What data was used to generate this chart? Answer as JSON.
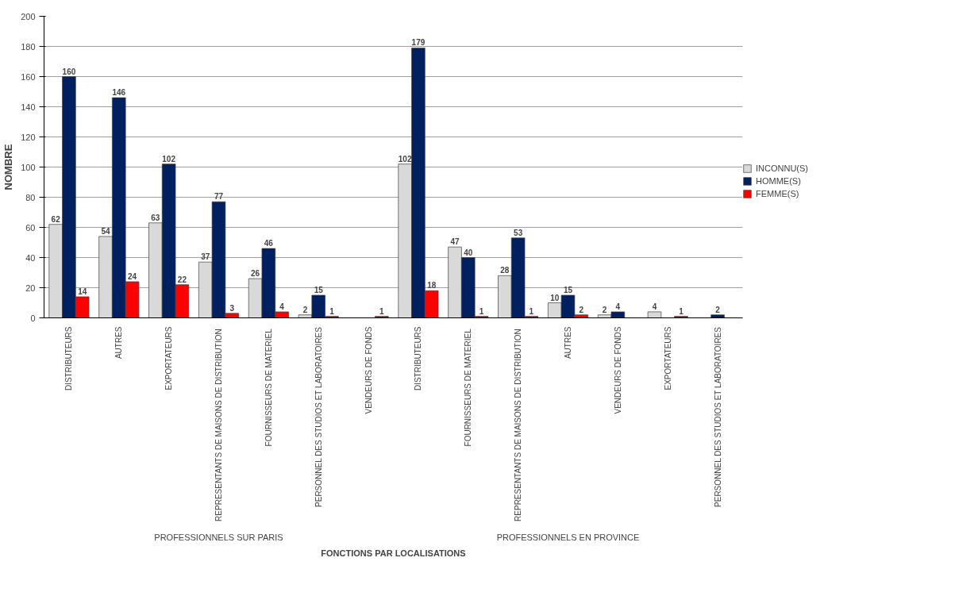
{
  "chart_data": {
    "type": "bar",
    "xlabel": "FONCTIONS PAR LOCALISATIONS",
    "ylabel": "NOMBRE",
    "categories": [
      "DISTRIBUTEURS",
      "AUTRES",
      "EXPORTATEURS",
      "REPRESENTANTS  DE MAISONS DE DISTRIBUTION",
      "FOURNISSEURS  DE MATERIEL",
      "PERSONNEL DES STUDIOS ET LABORATOIRES",
      "VENDEURS DE FONDS",
      "DISTRIBUTEURS",
      "FOURNISSEURS  DE MATERIEL",
      "REPRESENTANTS  DE MAISONS DE DISTRIBUTION",
      "AUTRES",
      "VENDEURS DE FONDS",
      "EXPORTATEURS",
      "PERSONNEL DES STUDIOS ET LABORATOIRES"
    ],
    "series": [
      {
        "name": "INCONNU(S)",
        "color": "#d9d9d9",
        "values": [
          62,
          54,
          63,
          37,
          26,
          2,
          null,
          102,
          47,
          28,
          10,
          2,
          4,
          null
        ],
        "value_labels": [
          "62",
          "54",
          "63",
          "37",
          "26",
          "2",
          null,
          "102",
          "47",
          "28",
          "10",
          "2",
          "4",
          null
        ]
      },
      {
        "name": "HOMME(S)",
        "color": "#002060",
        "values": [
          160,
          146,
          102,
          77,
          46,
          15,
          null,
          179,
          40,
          53,
          15,
          4,
          null,
          2
        ],
        "value_labels": [
          "160",
          "146",
          "102",
          "77",
          "46",
          "15",
          null,
          "179",
          "40",
          "53",
          "15",
          "4",
          null,
          "2"
        ]
      },
      {
        "name": "FEMME(S)",
        "color": "#ff0000",
        "values": [
          14,
          24,
          22,
          3,
          4,
          1,
          1,
          18,
          1,
          1,
          2,
          null,
          1,
          null
        ],
        "value_labels": [
          "14",
          "24",
          "22",
          "3",
          "4",
          "1",
          "1",
          "18",
          "1",
          "1",
          "2",
          null,
          "1",
          null
        ]
      }
    ],
    "annotations": [
      "PROFESSIONNELS SUR PARIS",
      "PROFESSIONNELS EN PROVINCE"
    ],
    "ylim": [
      0,
      200
    ],
    "yticks": [
      0,
      20,
      40,
      60,
      80,
      100,
      120,
      140,
      160,
      180,
      200
    ],
    "grid": "y",
    "legend": "right"
  }
}
